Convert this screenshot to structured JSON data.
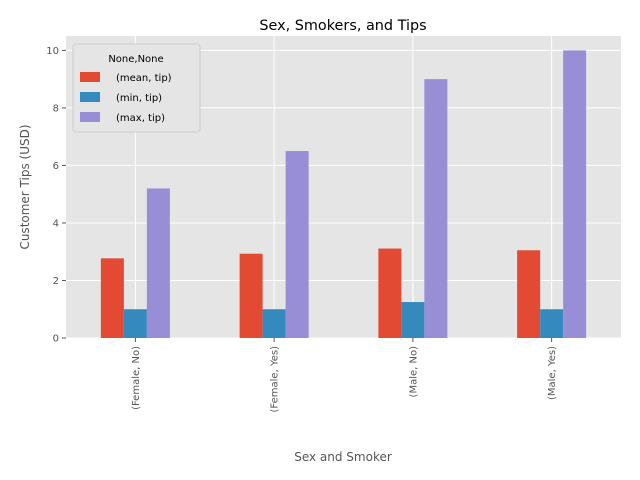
{
  "chart_data": {
    "type": "bar",
    "title": "Sex, Smokers, and Tips",
    "xlabel": "Sex and Smoker",
    "ylabel": "Customer Tips (USD)",
    "categories": [
      "(Female, No)",
      "(Female, Yes)",
      "(Male, No)",
      "(Male, Yes)"
    ],
    "series": [
      {
        "name": "(mean, tip)",
        "color": "#E24A33",
        "values": [
          2.77,
          2.93,
          3.11,
          3.05
        ]
      },
      {
        "name": "(min, tip)",
        "color": "#348ABD",
        "values": [
          1.0,
          1.0,
          1.25,
          1.0
        ]
      },
      {
        "name": "(max, tip)",
        "color": "#988ED5",
        "values": [
          5.2,
          6.5,
          9.0,
          10.0
        ]
      }
    ],
    "ylim": [
      0,
      10.5
    ],
    "yticks": [
      "0",
      "2",
      "4",
      "6",
      "8",
      "10"
    ],
    "legend_title": "None,None",
    "legend_position": "top-left",
    "grid": true,
    "background": "#E5E5E5"
  }
}
